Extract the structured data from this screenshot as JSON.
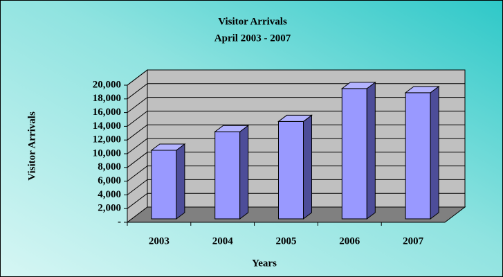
{
  "chart_data": {
    "type": "bar3d",
    "title": "Visitor Arrivals",
    "subtitle": "April 2003 - 2007",
    "x_label": "Years",
    "y_label": "Visitor Arrivals",
    "categories": [
      "2003",
      "2004",
      "2005",
      "2006",
      "2007"
    ],
    "values": [
      10000,
      12700,
      14200,
      19000,
      18400
    ],
    "color": "#9999ff",
    "ylim": [
      0,
      20000
    ],
    "yticks": [
      {
        "value": 0,
        "label": "-"
      },
      {
        "value": 2000,
        "label": "2,000"
      },
      {
        "value": 4000,
        "label": "4,000"
      },
      {
        "value": 6000,
        "label": "6,000"
      },
      {
        "value": 8000,
        "label": "8,000"
      },
      {
        "value": 10000,
        "label": "10,000"
      },
      {
        "value": 12000,
        "label": "12,000"
      },
      {
        "value": 14000,
        "label": "14,000"
      },
      {
        "value": 16000,
        "label": "16,000"
      },
      {
        "value": 18000,
        "label": "18,000"
      },
      {
        "value": 20000,
        "label": "20,000"
      }
    ],
    "grid": true
  }
}
